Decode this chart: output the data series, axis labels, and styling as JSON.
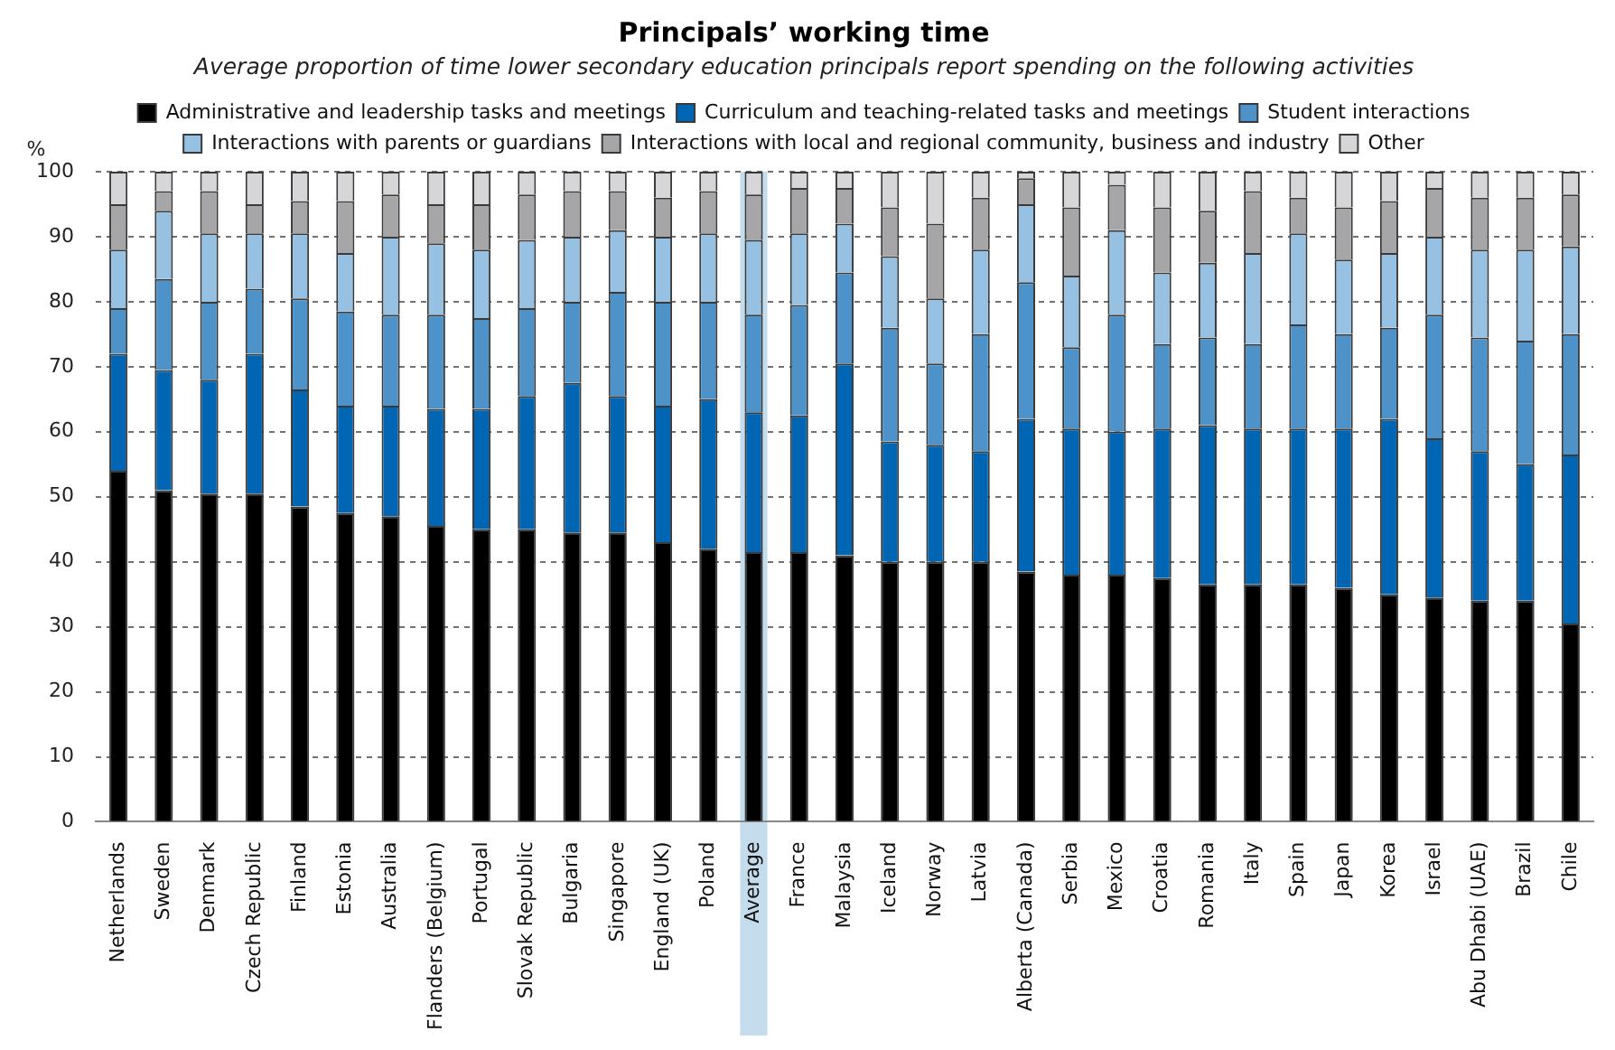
{
  "chart_data": {
    "type": "bar",
    "title": "Principals’ working time",
    "subtitle": "Average proportion of time lower secondary education principals report spending on the following activities",
    "ylabel": "%",
    "categories": [
      "Netherlands",
      "Sweden",
      "Denmark",
      "Czech Republic",
      "Finland",
      "Estonia",
      "Australia",
      "Flanders (Belgium)",
      "Portugal",
      "Slovak Republic",
      "Bulgaria",
      "Singapore",
      "England (UK)",
      "Poland",
      "Average",
      "France",
      "Malaysia",
      "Iceland",
      "Norway",
      "Latvia",
      "Alberta (Canada)",
      "Serbia",
      "Mexico",
      "Croatia",
      "Romania",
      "Italy",
      "Spain",
      "Japan",
      "Korea",
      "Israel",
      "Abu Dhabi (UAE)",
      "Brazil",
      "Chile"
    ],
    "stacked": true,
    "ylim": [
      0,
      100
    ],
    "yticks": [
      0,
      10,
      20,
      30,
      40,
      50,
      60,
      70,
      80,
      90,
      100
    ],
    "grid": "y",
    "legend": "top",
    "bands": [
      {
        "axis": "x",
        "from": "Average",
        "to": "Average",
        "color": "#c5dcec"
      }
    ],
    "series": [
      {
        "name": "Administrative and leadership tasks and meetings",
        "color": "#000000",
        "values": [
          54,
          51,
          50.5,
          50.5,
          48.5,
          47.5,
          47,
          45.5,
          45,
          45,
          44.5,
          44.5,
          43,
          42,
          41.5,
          41.5,
          41,
          40,
          40,
          40,
          38.5,
          38,
          38,
          37.5,
          36.5,
          36.5,
          36.5,
          36,
          35,
          34.5,
          34,
          34,
          30.5
        ]
      },
      {
        "name": "Curriculum and teaching-related tasks and meetings",
        "color": "#0066b3",
        "values": [
          18,
          18.5,
          17.5,
          21.5,
          18,
          16.5,
          17,
          18,
          18.5,
          20.5,
          23,
          21,
          21,
          23,
          21.5,
          21,
          29.5,
          18.5,
          18,
          17,
          23.5,
          22.5,
          22,
          23,
          24.5,
          24,
          24,
          24.5,
          27,
          24.5,
          23,
          21,
          26
        ]
      },
      {
        "name": "Student interactions",
        "color": "#4d93c9",
        "values": [
          7,
          14,
          12,
          10,
          14,
          14.5,
          14,
          14.5,
          14,
          13.5,
          12.5,
          16,
          16,
          15,
          15,
          17,
          14,
          17.5,
          12.5,
          18,
          21,
          12.5,
          18,
          13,
          13.5,
          13,
          16,
          14.5,
          14,
          19,
          17.5,
          19,
          18.5
        ]
      },
      {
        "name": "Interactions with parents or guardians",
        "color": "#96c1e3",
        "values": [
          9,
          10.5,
          10.5,
          8.5,
          10,
          9,
          12,
          11,
          10.5,
          10.5,
          10,
          9.5,
          10,
          10.5,
          11.5,
          11,
          7.5,
          11,
          10,
          13,
          12,
          11,
          13,
          11,
          11.5,
          14,
          14,
          11.5,
          11.5,
          12,
          13.5,
          14,
          13.5
        ]
      },
      {
        "name": "Interactions with local and regional community, business and industry",
        "color": "#a6a6a8",
        "values": [
          7,
          3,
          6.5,
          4.5,
          5,
          8,
          6.5,
          6,
          7,
          7,
          7,
          6,
          6,
          6.5,
          7,
          7,
          5.5,
          7.5,
          11.5,
          8,
          4,
          10.5,
          7,
          10,
          8,
          9.5,
          5.5,
          8,
          8,
          7.5,
          8,
          8,
          8
        ]
      },
      {
        "name": "Other",
        "color": "#d6d6d8",
        "values": [
          5,
          3,
          3,
          5,
          4.5,
          4.5,
          3.5,
          5,
          5,
          3.5,
          3,
          3,
          4,
          3,
          3.5,
          2.5,
          2.5,
          5.5,
          8,
          4,
          1,
          5.5,
          2,
          5.5,
          6,
          3,
          4,
          5.5,
          4.5,
          2.5,
          4,
          4,
          3.5
        ]
      }
    ]
  }
}
